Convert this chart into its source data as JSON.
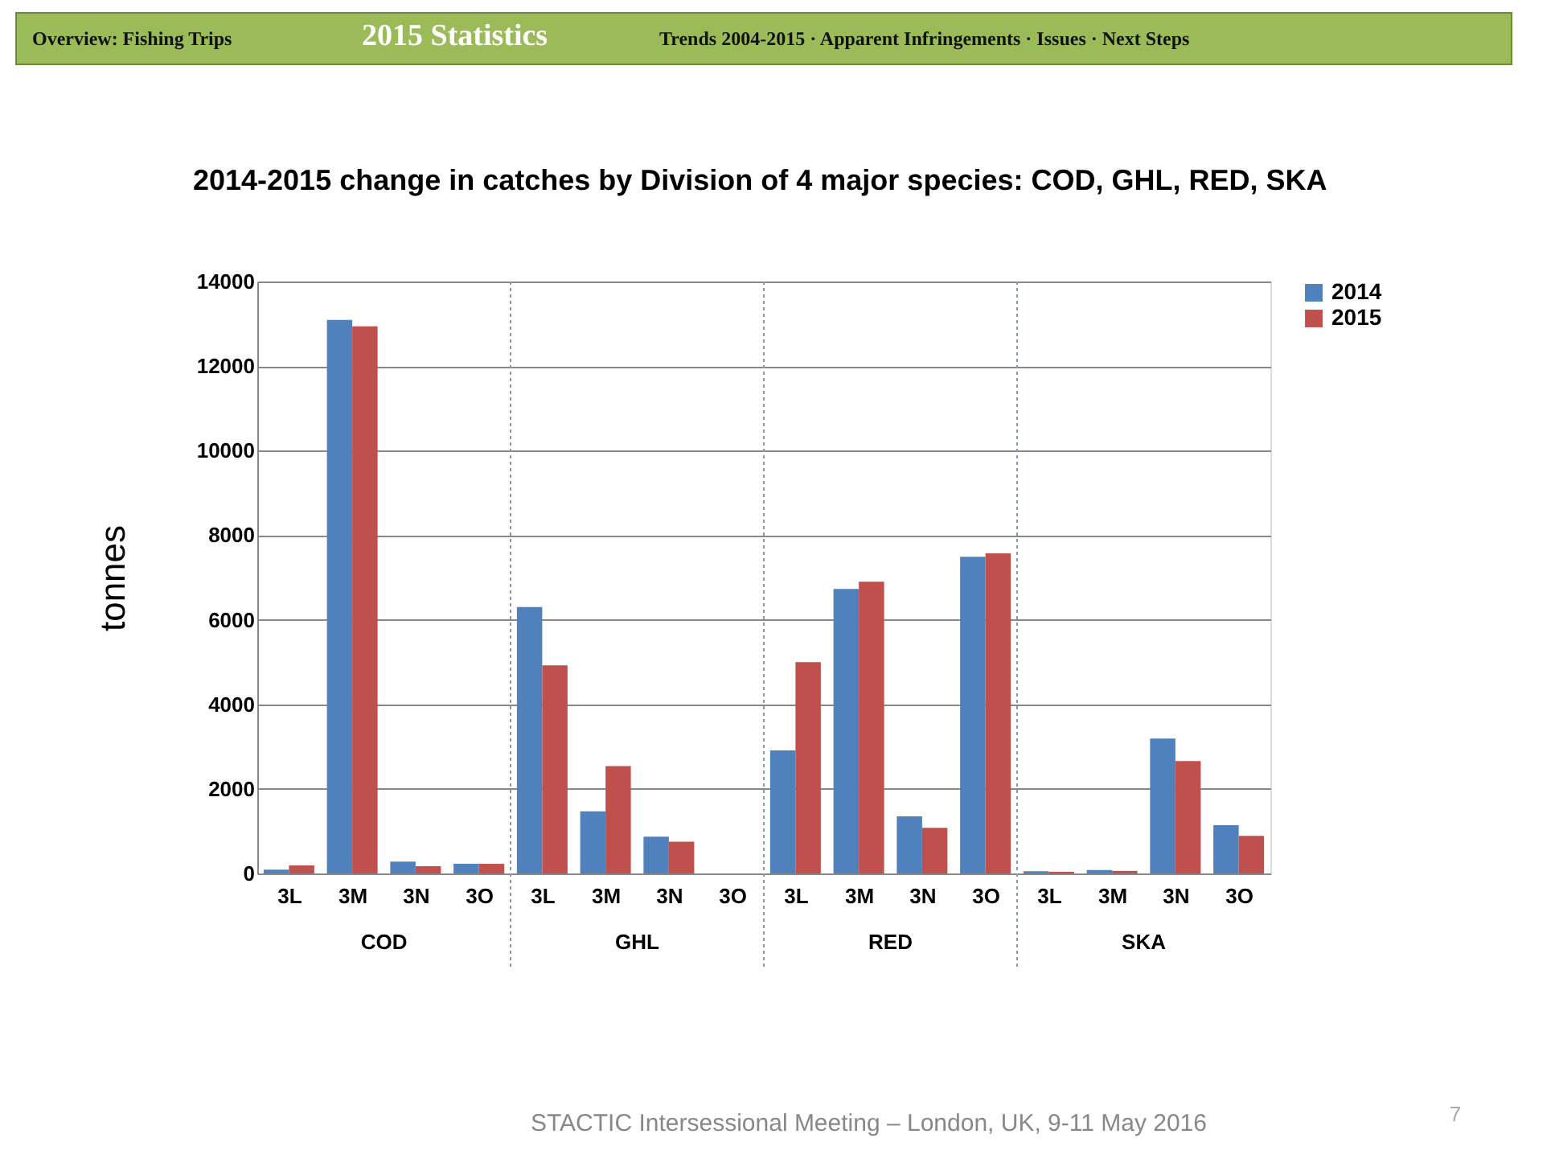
{
  "chart_data": {
    "type": "bar",
    "title": "2014-2015 change in catches by Division of 4 major species: COD, GHL, RED, SKA",
    "ylabel": "tonnes",
    "categories": [
      "3L",
      "3M",
      "3N",
      "3O",
      "3L",
      "3M",
      "3N",
      "3O",
      "3L",
      "3M",
      "3N",
      "3O",
      "3L",
      "3M",
      "3N",
      "3O"
    ],
    "series": [
      {
        "name": "2014",
        "color": "#4f81bd",
        "values": [
          90,
          13090,
          280,
          230,
          6300,
          1470,
          870,
          0,
          2910,
          6730,
          1350,
          7490,
          50,
          80,
          3190,
          1140
        ]
      },
      {
        "name": "2015",
        "color": "#c0504d",
        "values": [
          190,
          12940,
          170,
          230,
          4920,
          2540,
          750,
          0,
          5000,
          6900,
          1080,
          7570,
          40,
          60,
          2660,
          890
        ]
      }
    ],
    "ylim": [
      0,
      14000
    ],
    "yticks": [
      0,
      2000,
      4000,
      6000,
      8000,
      10000,
      12000,
      14000
    ],
    "grid": "y",
    "legend": "right",
    "annotations": [
      "COD",
      "GHL",
      "RED",
      "SKA",
      "Overview: Fishing Trips",
      "2015 Statistics",
      "Trends 2004-2015 · Apparent Infringements · Issues · Next Steps",
      "STACTIC Intersessional Meeting – London, UK, 9-11 May 2016",
      "7"
    ]
  }
}
